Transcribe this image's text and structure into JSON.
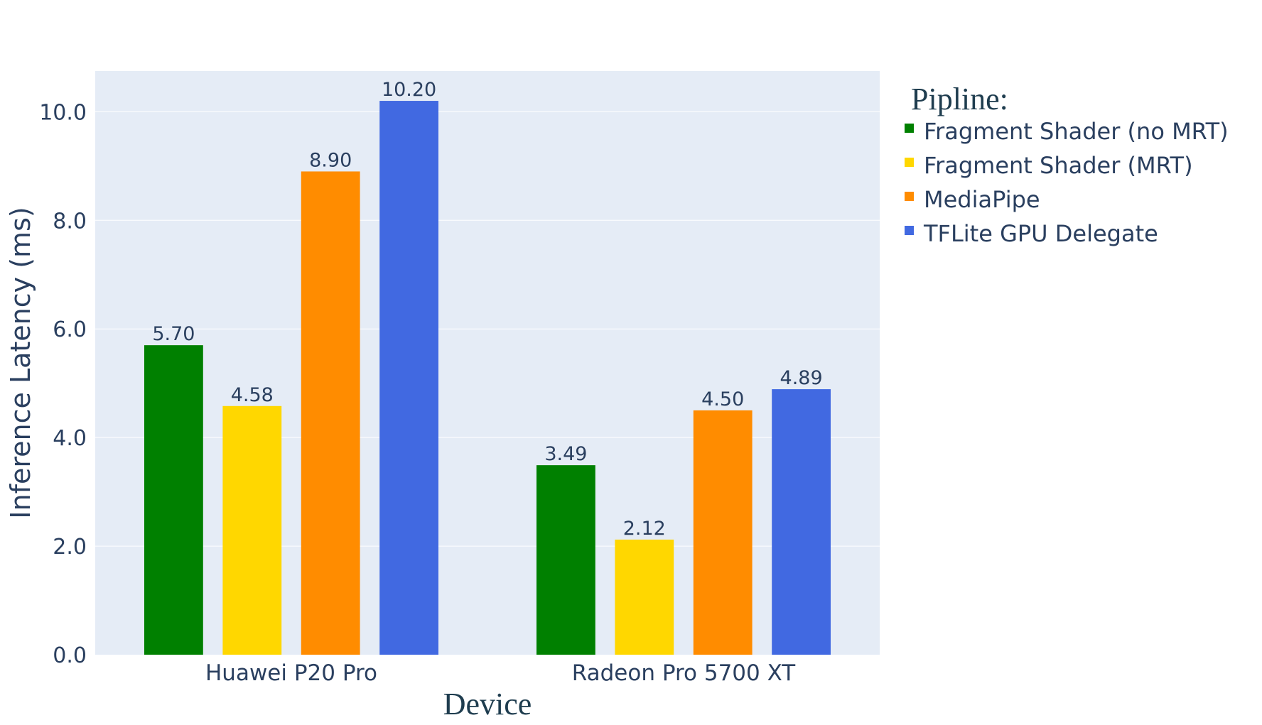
{
  "chart_data": {
    "type": "bar",
    "categories": [
      "Huawei P20 Pro",
      "Radeon Pro 5700 XT"
    ],
    "series": [
      {
        "name": "Fragment Shader (no MRT)",
        "values": [
          5.7,
          3.49
        ],
        "labels": [
          "5.70",
          "3.49"
        ],
        "color": "#008000"
      },
      {
        "name": "Fragment Shader (MRT)",
        "values": [
          4.58,
          2.12
        ],
        "labels": [
          "4.58",
          "2.12"
        ],
        "color": "#FFD700"
      },
      {
        "name": "MediaPipe",
        "values": [
          8.9,
          4.5
        ],
        "labels": [
          "8.90",
          "4.50"
        ],
        "color": "#FF8C00"
      },
      {
        "name": "TFLite GPU Delegate",
        "values": [
          10.2,
          4.89
        ],
        "labels": [
          "10.20",
          "4.89"
        ],
        "color": "#4169E1"
      }
    ],
    "xlabel": "Device",
    "ylabel": "Inference Latency (ms)",
    "ylim": [
      0,
      10.75
    ],
    "yticks": [
      0,
      2,
      4,
      6,
      8,
      10
    ],
    "ytick_labels": [
      "0.0",
      "2.0",
      "4.0",
      "6.0",
      "8.0",
      "10.0"
    ],
    "legend_title": "Pipline:",
    "legend_position": "top-right",
    "grid": true,
    "colors": {
      "plot_background": "#E5ECF6",
      "grid": "#FFFFFF",
      "text": "#2A3F5F",
      "serif_text": "#1F3D4F"
    }
  }
}
